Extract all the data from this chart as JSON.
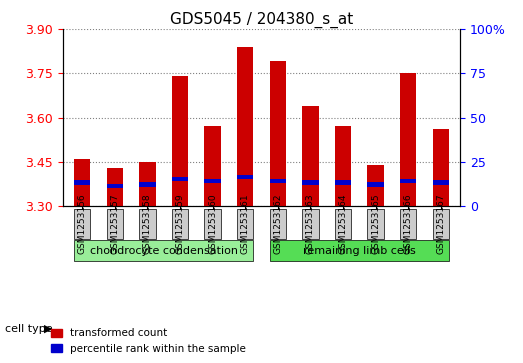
{
  "title": "GDS5045 / 204380_s_at",
  "samples": [
    "GSM1253156",
    "GSM1253157",
    "GSM1253158",
    "GSM1253159",
    "GSM1253160",
    "GSM1253161",
    "GSM1253162",
    "GSM1253163",
    "GSM1253164",
    "GSM1253165",
    "GSM1253166",
    "GSM1253167"
  ],
  "transformed_count": [
    3.46,
    3.43,
    3.45,
    3.74,
    3.57,
    3.84,
    3.79,
    3.64,
    3.57,
    3.44,
    3.75,
    3.56
  ],
  "percentile_rank": [
    12,
    10,
    11,
    14,
    13,
    15,
    13,
    12,
    12,
    11,
    13,
    12
  ],
  "y_min": 3.3,
  "y_max": 3.9,
  "y_ticks": [
    3.3,
    3.45,
    3.6,
    3.75,
    3.9
  ],
  "right_y_ticks": [
    0,
    25,
    50,
    75,
    100
  ],
  "bar_color_red": "#cc0000",
  "bar_color_blue": "#0000cc",
  "bg_color": "#cccccc",
  "group1_color": "#99ee99",
  "group2_color": "#55dd55",
  "group1_label": "chondrocyte condensation",
  "group2_label": "remaining limb cells",
  "cell_type_label": "cell type",
  "group1_indices": [
    0,
    1,
    2,
    3,
    4,
    5
  ],
  "group2_indices": [
    6,
    7,
    8,
    9,
    10,
    11
  ],
  "legend_red": "transformed count",
  "legend_blue": "percentile rank within the sample"
}
